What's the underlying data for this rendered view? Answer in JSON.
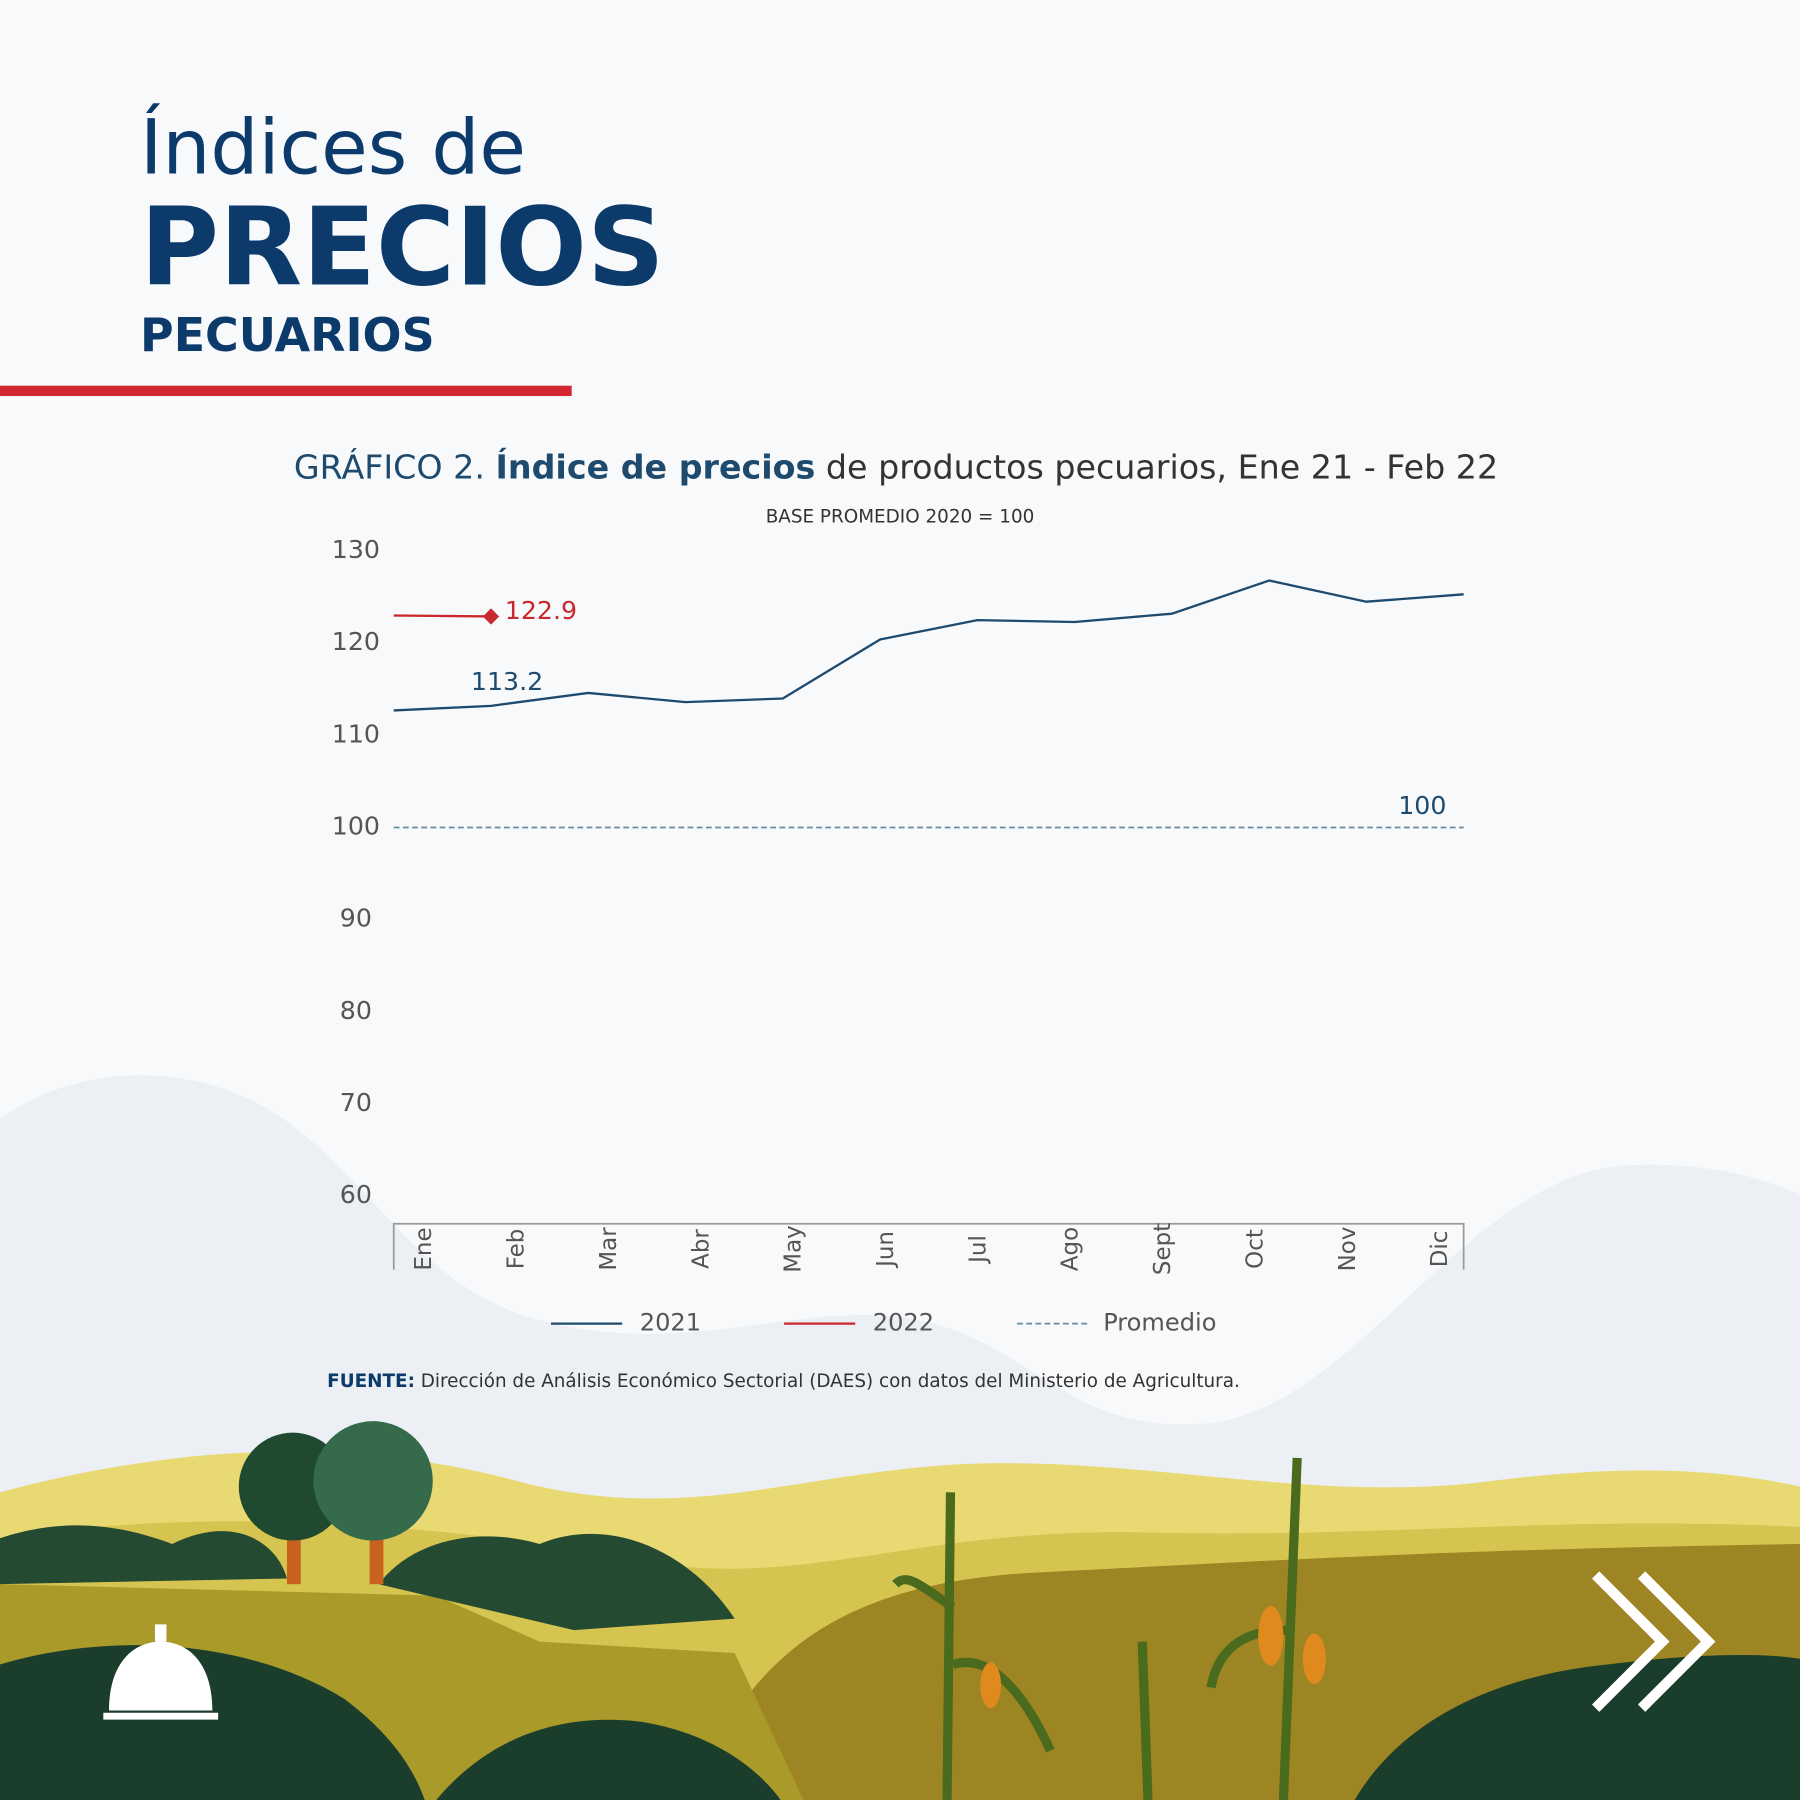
{
  "header": {
    "line1": "Índices de",
    "line2": "PRECIOS",
    "line3": "PECUARIOS"
  },
  "chart_data": {
    "type": "line",
    "title": {
      "label": "GRÁFICO 2.",
      "emphasis": "Índice de precios",
      "text": "de productos pecuarios,",
      "period": "Ene 21 - Feb 22"
    },
    "subtitle": "BASE PROMEDIO 2020 = 100",
    "categories": [
      "Ene",
      "Feb",
      "Mar",
      "Abr",
      "May",
      "Jun",
      "Jul",
      "Ago",
      "Sept",
      "Oct",
      "Nov",
      "Dic"
    ],
    "series": [
      {
        "name": "2021",
        "color": "#1e4a6e",
        "values": [
          112.7,
          113.2,
          114.6,
          113.6,
          114.0,
          120.4,
          122.5,
          122.3,
          123.2,
          126.8,
          124.5,
          125.3
        ],
        "value_labels": [
          null,
          "113.2",
          null,
          null,
          null,
          null,
          null,
          null,
          null,
          null,
          null,
          null
        ]
      },
      {
        "name": "2022",
        "color": "#c8282e",
        "values": [
          123.0,
          122.9,
          null,
          null,
          null,
          null,
          null,
          null,
          null,
          null,
          null,
          null
        ],
        "value_labels": [
          null,
          "122.9",
          null,
          null,
          null,
          null,
          null,
          null,
          null,
          null,
          null,
          null
        ]
      },
      {
        "name": "Promedio",
        "color": "#6a8aa0",
        "dashed": true,
        "values": [
          100,
          100,
          100,
          100,
          100,
          100,
          100,
          100,
          100,
          100,
          100,
          100
        ],
        "value_labels": [
          null,
          null,
          null,
          null,
          null,
          null,
          null,
          null,
          null,
          null,
          null,
          "100"
        ]
      }
    ],
    "ylim": [
      57,
      130
    ],
    "yticks": [
      60,
      70,
      80,
      90,
      100,
      110,
      120,
      130
    ],
    "grid": false
  },
  "source": {
    "label": "FUENTE:",
    "text": "Dirección de Análisis Económico Sectorial (DAES) con datos del Ministerio de Agricultura."
  }
}
